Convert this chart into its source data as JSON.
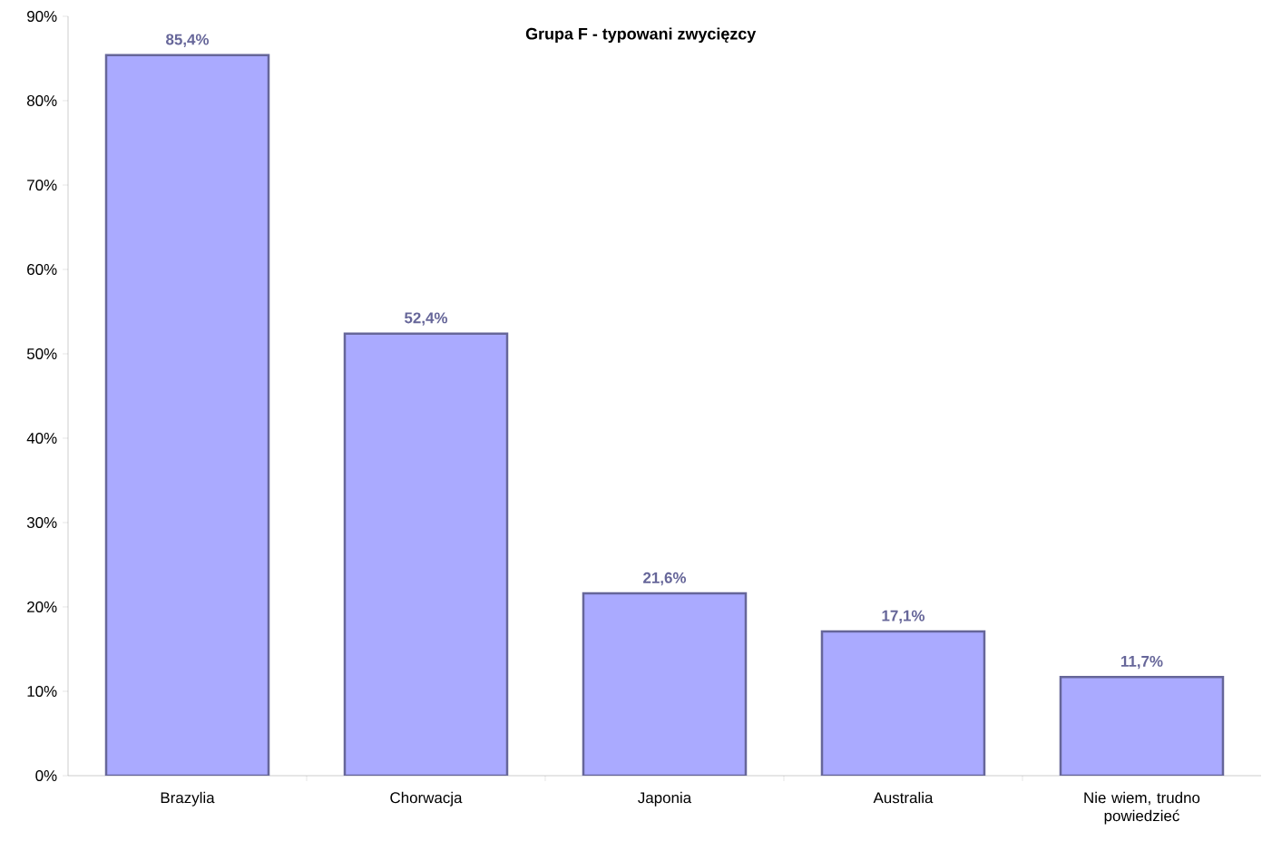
{
  "chart_data": {
    "type": "bar",
    "title": "**Grupa F - typowani zwycięzcy**",
    "categories": [
      "Brazylia",
      "Chorwacja",
      "Japonia",
      "Australia",
      "Nie wiem, trudno powiedzieć"
    ],
    "values": [
      85.4,
      52.4,
      21.6,
      17.1,
      11.7
    ],
    "value_labels": [
      "85,4%",
      "52,4%",
      "21,6%",
      "17,1%",
      "11,7%"
    ],
    "color": "#aaaaff",
    "ylim": [
      0,
      90
    ],
    "yticks": [
      {
        "value": 0,
        "label": "0%"
      },
      {
        "value": 10,
        "label": "10%"
      },
      {
        "value": 20,
        "label": "20%"
      },
      {
        "value": 30,
        "label": "30%"
      },
      {
        "value": 40,
        "label": "40%"
      },
      {
        "value": 50,
        "label": "50%"
      },
      {
        "value": 60,
        "label": "60%"
      },
      {
        "value": 70,
        "label": "70%"
      },
      {
        "value": 80,
        "label": "80%"
      },
      {
        "value": 90,
        "label": "90%"
      }
    ]
  }
}
